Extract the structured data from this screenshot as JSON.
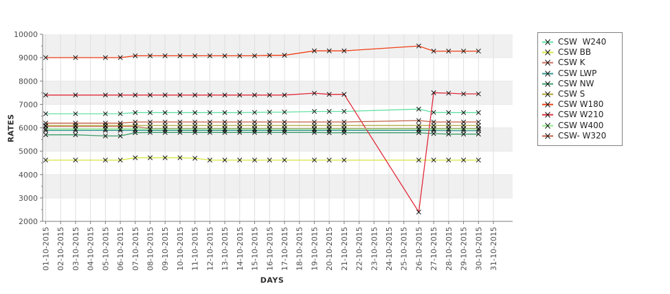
{
  "chart_data": {
    "type": "line",
    "title": "",
    "xlabel": "DAYS",
    "ylabel": "RATES",
    "ylim": [
      2000,
      10000
    ],
    "y_ticks": [
      2000,
      3000,
      4000,
      5000,
      6000,
      7000,
      8000,
      9000,
      10000
    ],
    "x_categories": [
      "01-10-2015",
      "02-10-2015",
      "03-10-2015",
      "04-10-2015",
      "05-10-2015",
      "06-10-2015",
      "07-10-2015",
      "08-10-2015",
      "09-10-2015",
      "10-10-2015",
      "11-10-2015",
      "12-10-2015",
      "13-10-2015",
      "14-10-2015",
      "15-10-2015",
      "16-10-2015",
      "17-10-2015",
      "18-10-2015",
      "19-10-2015",
      "20-10-2015",
      "21-10-2015",
      "22-10-2015",
      "23-10-2015",
      "24-10-2015",
      "25-10-2015",
      "26-10-2015",
      "27-10-2015",
      "28-10-2015",
      "29-10-2015",
      "30-10-2015",
      "31-10-2015"
    ],
    "data_days": [
      1,
      3,
      5,
      6,
      7,
      8,
      9,
      10,
      11,
      12,
      13,
      14,
      15,
      16,
      17,
      19,
      20,
      21,
      26,
      27,
      28,
      29,
      30
    ],
    "legend_position": "right",
    "grid": true,
    "marker": "x",
    "band_colors": {
      "odd": "#f0f0f0",
      "even": "#ffffff"
    },
    "series": [
      {
        "name": "CSW  W240",
        "color": "#5fe0a2",
        "values": [
          6600,
          6600,
          6600,
          6600,
          6650,
          6650,
          6650,
          6650,
          6650,
          6650,
          6650,
          6650,
          6660,
          6670,
          6670,
          6700,
          6700,
          6700,
          6800,
          6660,
          6650,
          6650,
          6650
        ]
      },
      {
        "name": "CSW BB",
        "color": "#d6e63e",
        "values": [
          4620,
          4620,
          4620,
          4620,
          4720,
          4720,
          4720,
          4720,
          4700,
          4620,
          4620,
          4620,
          4620,
          4620,
          4620,
          4620,
          4620,
          4620,
          4620,
          4620,
          4620,
          4620,
          4620
        ]
      },
      {
        "name": "CSW K",
        "color": "#c87060",
        "values": [
          6060,
          6060,
          6060,
          6060,
          6060,
          5970,
          5970,
          5970,
          5970,
          5970,
          5970,
          5970,
          5970,
          5970,
          5970,
          5970,
          5970,
          5970,
          5970,
          5970,
          5970,
          5970,
          5970
        ]
      },
      {
        "name": "CSW LWP",
        "color": "#2f968e",
        "values": [
          5890,
          5890,
          5890,
          5890,
          5890,
          5890,
          5890,
          5890,
          5890,
          5890,
          5890,
          5890,
          5890,
          5890,
          5890,
          5890,
          5890,
          5890,
          5890,
          5890,
          5880,
          5880,
          5880
        ]
      },
      {
        "name": "CSW NW",
        "color": "#3a9c68",
        "values": [
          5700,
          5700,
          5650,
          5650,
          5790,
          5800,
          5800,
          5800,
          5800,
          5800,
          5800,
          5800,
          5800,
          5800,
          5800,
          5800,
          5790,
          5790,
          5790,
          5750,
          5730,
          5730,
          5730
        ]
      },
      {
        "name": "CSW S",
        "color": "#aaa232",
        "values": [
          6100,
          6100,
          6100,
          6100,
          6100,
          6100,
          6100,
          6100,
          6100,
          6100,
          6100,
          6100,
          6100,
          6100,
          6100,
          6100,
          6100,
          6100,
          6100,
          6100,
          6100,
          6100,
          6100
        ]
      },
      {
        "name": "CSW W180",
        "color": "#f03c12",
        "values": [
          9000,
          9000,
          9000,
          9000,
          9080,
          9080,
          9080,
          9080,
          9080,
          9080,
          9080,
          9080,
          9080,
          9100,
          9100,
          9290,
          9290,
          9290,
          9500,
          9280,
          9280,
          9280,
          9280
        ]
      },
      {
        "name": "CSW W210",
        "color": "#e02838",
        "values": [
          7400,
          7400,
          7400,
          7400,
          7400,
          7400,
          7400,
          7400,
          7400,
          7400,
          7400,
          7400,
          7400,
          7400,
          7400,
          7480,
          7430,
          7430,
          2400,
          7500,
          7480,
          7450,
          7450
        ]
      },
      {
        "name": "CSW W400",
        "color": "#8ce886",
        "values": [
          5950,
          5950,
          5950,
          5950,
          5950,
          5950,
          5950,
          5950,
          5950,
          5950,
          5950,
          5950,
          5950,
          5950,
          5950,
          5950,
          5950,
          5950,
          5950,
          5950,
          5950,
          5950,
          5950
        ]
      },
      {
        "name": "CSW- W320",
        "color": "#c05c42",
        "values": [
          6200,
          6200,
          6200,
          6200,
          6250,
          6250,
          6250,
          6250,
          6250,
          6250,
          6250,
          6250,
          6250,
          6250,
          6250,
          6250,
          6250,
          6250,
          6310,
          6250,
          6250,
          6250,
          6250
        ]
      }
    ]
  }
}
